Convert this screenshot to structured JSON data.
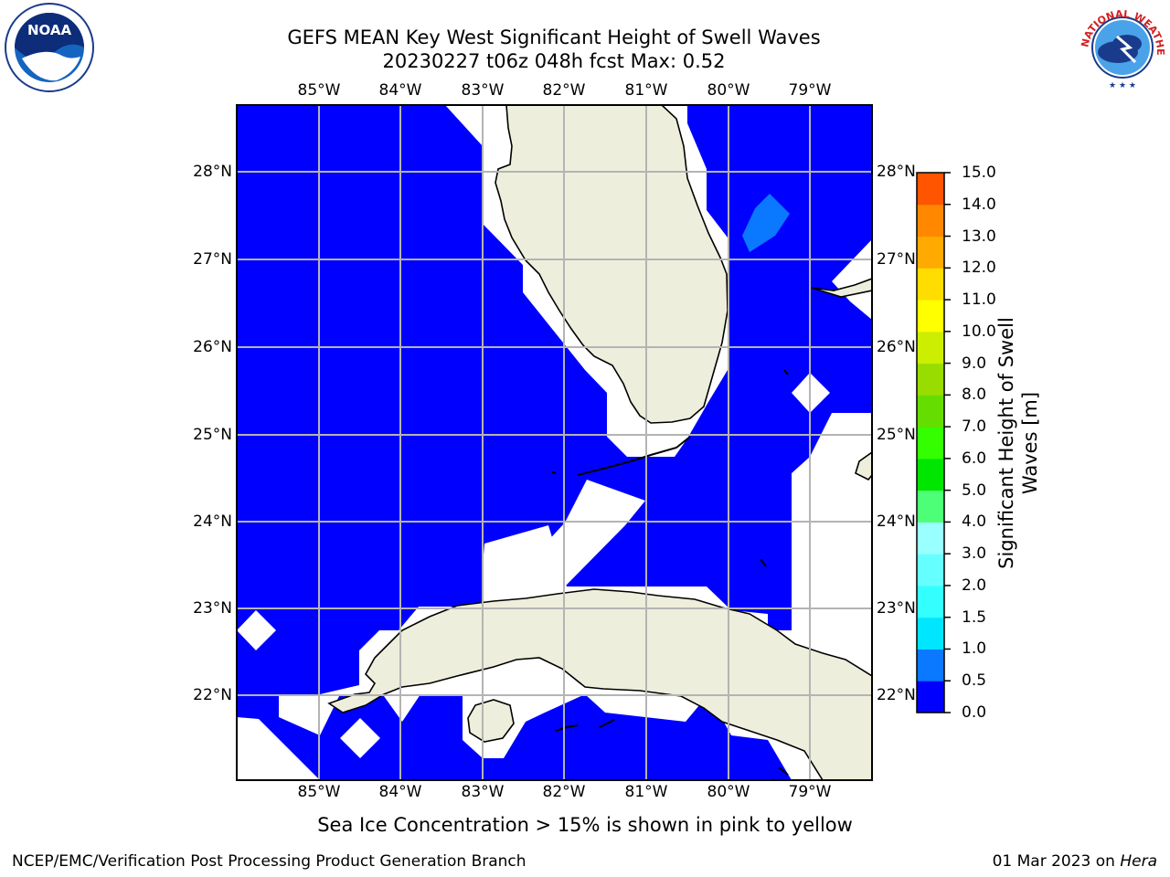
{
  "title": {
    "line1": "GEFS MEAN Key West Significant Height of Swell Waves",
    "line2": "20230227 t06z 048h fcst   Max: 0.52"
  },
  "map": {
    "lon_labels": [
      "85°W",
      "84°W",
      "83°W",
      "82°W",
      "81°W",
      "80°W",
      "79°W"
    ],
    "lat_labels": [
      "28°N",
      "27°N",
      "26°N",
      "25°N",
      "24°N",
      "23°N",
      "22°N"
    ],
    "ocean_color": "#0000ff",
    "land_color": "#eeeedc",
    "masked_color": "#ffffff",
    "swell_patch_color": "#0a78ff",
    "grid_color": "#b4b4b4"
  },
  "colorbar": {
    "label": "Significant Height of Swell Waves [m]",
    "ticks": [
      "15.0",
      "14.0",
      "13.0",
      "12.0",
      "11.0",
      "10.0",
      "9.0",
      "8.0",
      "7.0",
      "6.0",
      "5.0",
      "4.0",
      "3.0",
      "2.0",
      "1.5",
      "1.0",
      "0.5",
      "0.0"
    ],
    "colors": [
      "#0000ff",
      "#0a78ff",
      "#00e6ff",
      "#33ffff",
      "#66ffff",
      "#99ffff",
      "#4dff77",
      "#00e600",
      "#33ff00",
      "#66dd00",
      "#99dd00",
      "#ccee00",
      "#ffff00",
      "#ffdd00",
      "#ffaa00",
      "#ff8800",
      "#ff5500",
      "#ff2200",
      "#ff0000"
    ]
  },
  "note": "Sea Ice Concentration > 15% is shown in pink to yellow",
  "footer": {
    "left": "NCEP/EMC/Verification Post Processing Product Generation Branch",
    "right_date": "01 Mar 2023 on",
    "right_host": "Hera"
  },
  "logos": {
    "noaa": "NOAA",
    "nws": "NATIONAL WEATHER SERVICE"
  }
}
